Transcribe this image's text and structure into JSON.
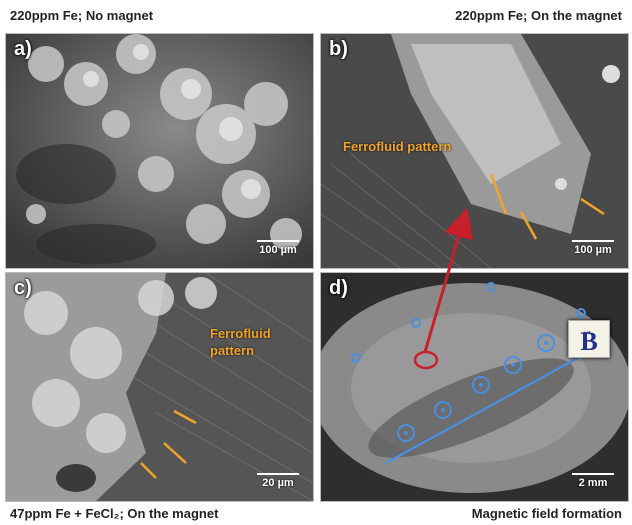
{
  "captions": {
    "top_left": "220ppm Fe; No magnet",
    "top_right": "220ppm Fe; On the magnet",
    "bottom_left": "47ppm Fe + FeCl₂; On the magnet",
    "bottom_right": "Magnetic field formation"
  },
  "panels": {
    "a": {
      "label": "a)",
      "scale": "100 µm"
    },
    "b": {
      "label": "b)",
      "scale": "100 µm",
      "annotation": "Ferrofluid pattern"
    },
    "c": {
      "label": "c)",
      "scale": "20 µm",
      "annotation_line1": "Ferrofluid",
      "annotation_line2": "pattern"
    },
    "d": {
      "label": "d)",
      "scale": "2 mm",
      "field_label": "B"
    }
  },
  "colors": {
    "annotation": "#f0a42a",
    "arrow": "#c8202a",
    "circles": "#4a8fe0",
    "field_box": "#f4f1e6",
    "field_letter": "#23308a"
  }
}
